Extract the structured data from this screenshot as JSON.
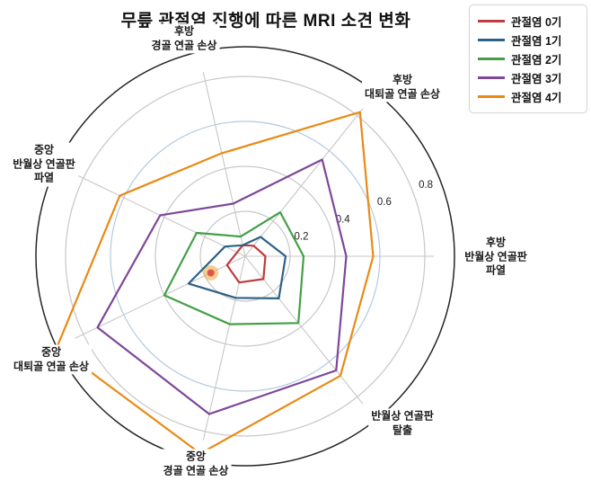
{
  "title": "무릎 관절염 진행에 따른 MRI 소견 변화",
  "chart_data": {
    "type": "radar",
    "categories": [
      "후방\n반월상 연골판\n파열",
      "후방\n대퇴골 연골 손상",
      "후방\n경골 연골 손상",
      "중앙\n반월상 연골판\n파열",
      "중앙\n대퇴골 연골 손상",
      "중앙\n경골 연골 손상",
      "반월상 연골판\n탈출"
    ],
    "start_angle_deg": 0,
    "direction": "counterclockwise",
    "r_ticks": [
      0.2,
      0.4,
      0.6,
      0.8
    ],
    "r_tick_labels": [
      "0.2",
      "0.4",
      "0.6",
      "0.8"
    ],
    "rlabel_angle_deg": 22.5,
    "grid": true,
    "legend_position": "top-right",
    "series": [
      {
        "name": "관절염 0기",
        "color": "#c03b3d",
        "values": [
          0.09,
          0.06,
          0.05,
          0.04,
          0.09,
          0.12,
          0.13
        ]
      },
      {
        "name": "관절염 1기",
        "color": "#2e6187",
        "values": [
          0.18,
          0.11,
          0.05,
          0.1,
          0.28,
          0.19,
          0.24
        ]
      },
      {
        "name": "관절염 2기",
        "color": "#43a047",
        "values": [
          0.26,
          0.25,
          0.09,
          0.24,
          0.4,
          0.31,
          0.38
        ]
      },
      {
        "name": "관절염 3기",
        "color": "#7e4798",
        "values": [
          0.45,
          0.55,
          0.24,
          0.42,
          0.73,
          0.72,
          0.65
        ]
      },
      {
        "name": "관절염 4기",
        "color": "#e98a15",
        "values": [
          0.57,
          0.82,
          0.47,
          0.62,
          0.93,
          0.9,
          0.68
        ]
      }
    ],
    "highlight_marker": {
      "category": "중앙 대퇴골 연골 손상",
      "category_index": 4,
      "value": 0.17,
      "outer_color": "#f0a73e",
      "inner_color": "#dd4f45"
    }
  },
  "style_colors": {
    "grid_gray": "#c7c7c7",
    "grid_blue_ring": "#b3c9e0",
    "outline_black": "#252525",
    "tick_label": "#222222"
  }
}
